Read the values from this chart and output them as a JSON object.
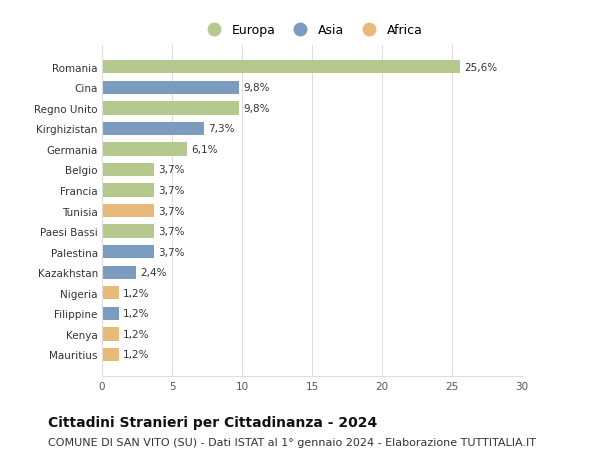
{
  "categories": [
    "Romania",
    "Cina",
    "Regno Unito",
    "Kirghizistan",
    "Germania",
    "Belgio",
    "Francia",
    "Tunisia",
    "Paesi Bassi",
    "Palestina",
    "Kazakhstan",
    "Nigeria",
    "Filippine",
    "Kenya",
    "Mauritius"
  ],
  "values": [
    25.6,
    9.8,
    9.8,
    7.3,
    6.1,
    3.7,
    3.7,
    3.7,
    3.7,
    3.7,
    2.4,
    1.2,
    1.2,
    1.2,
    1.2
  ],
  "continents": [
    "Europa",
    "Asia",
    "Europa",
    "Asia",
    "Europa",
    "Europa",
    "Europa",
    "Africa",
    "Europa",
    "Asia",
    "Asia",
    "Africa",
    "Asia",
    "Africa",
    "Africa"
  ],
  "labels": [
    "25,6%",
    "9,8%",
    "9,8%",
    "7,3%",
    "6,1%",
    "3,7%",
    "3,7%",
    "3,7%",
    "3,7%",
    "3,7%",
    "2,4%",
    "1,2%",
    "1,2%",
    "1,2%",
    "1,2%"
  ],
  "colors": {
    "Europa": "#b5c98e",
    "Asia": "#7b9bbf",
    "Africa": "#e8b97a"
  },
  "legend_labels": [
    "Europa",
    "Asia",
    "Africa"
  ],
  "xlim": [
    0,
    30
  ],
  "xticks": [
    0,
    5,
    10,
    15,
    20,
    25,
    30
  ],
  "title": "Cittadini Stranieri per Cittadinanza - 2024",
  "subtitle": "COMUNE DI SAN VITO (SU) - Dati ISTAT al 1° gennaio 2024 - Elaborazione TUTTITALIA.IT",
  "background_color": "#ffffff",
  "grid_color": "#dddddd",
  "title_fontsize": 10,
  "subtitle_fontsize": 8,
  "bar_label_fontsize": 7.5,
  "tick_fontsize": 7.5,
  "legend_fontsize": 9
}
